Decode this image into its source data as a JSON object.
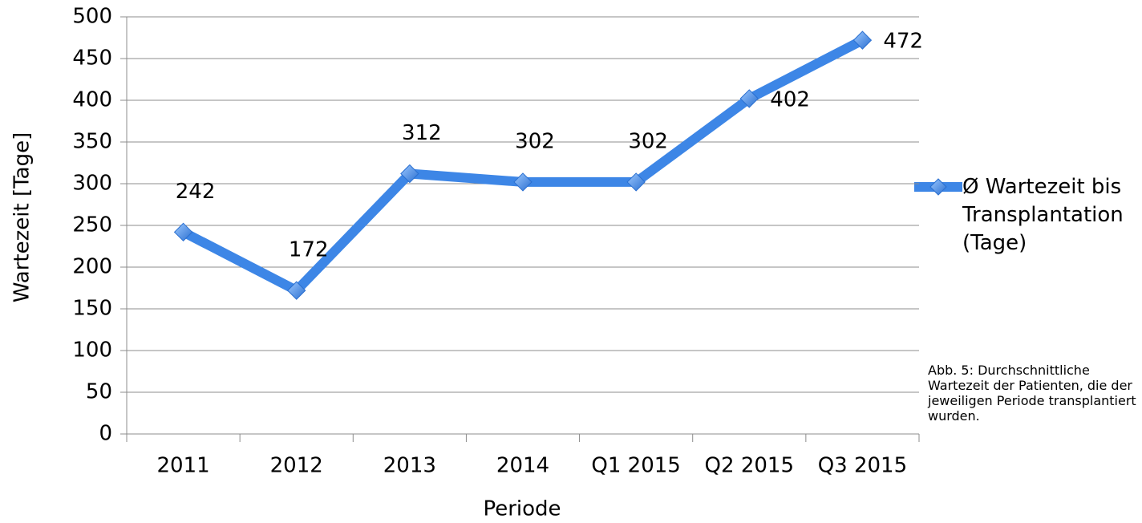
{
  "chart_data": {
    "type": "line",
    "x_label": "Periode",
    "y_label": "Wartezeit [Tage]",
    "annotation": "Abb. 5: Durchschnittliche Wartezeit der Patienten, die der jeweiligen Periode transplantiert wurden.",
    "categories": [
      "2011",
      "2012",
      "2013",
      "2014",
      "Q1 2015",
      "Q2 2015",
      "Q3 2015"
    ],
    "series": [
      {
        "name": "Ø Wartezeit bis Transplantation (Tage)",
        "color": "#3d86e6",
        "values": [
          242,
          172,
          312,
          302,
          302,
          402,
          472
        ]
      }
    ],
    "ylim": [
      0,
      500
    ],
    "yticks": [
      0,
      50,
      100,
      150,
      200,
      250,
      300,
      350,
      400,
      450,
      500
    ],
    "grid": true,
    "legend": "right"
  }
}
